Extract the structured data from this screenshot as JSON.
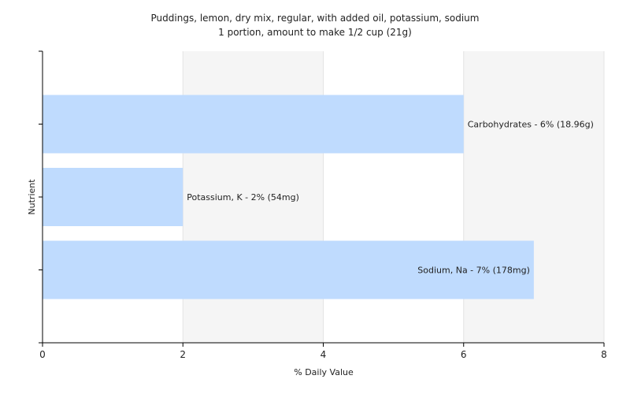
{
  "chart_data": {
    "type": "bar",
    "orientation": "horizontal",
    "title": "Puddings, lemon, dry mix, regular, with added oil, potassium, sodium",
    "subtitle": "1 portion, amount to make 1/2 cup (21g)",
    "xlabel": "% Daily Value",
    "ylabel": "Nutrient",
    "xlim": [
      0,
      8
    ],
    "xticks": [
      0,
      2,
      4,
      6,
      8
    ],
    "grid": true,
    "categories": [
      "Carbohydrates",
      "Potassium, K",
      "Sodium, Na"
    ],
    "values": [
      6,
      2,
      7
    ],
    "labels": [
      "Carbohydrates - 6% (18.96g)",
      "Potassium, K - 2% (54mg)",
      "Sodium, Na - 7% (178mg)"
    ],
    "colors": {
      "bar": "#bfdbfe",
      "band": "#f5f5f5",
      "grid": "#e4e4e4",
      "axis": "#000000"
    }
  }
}
